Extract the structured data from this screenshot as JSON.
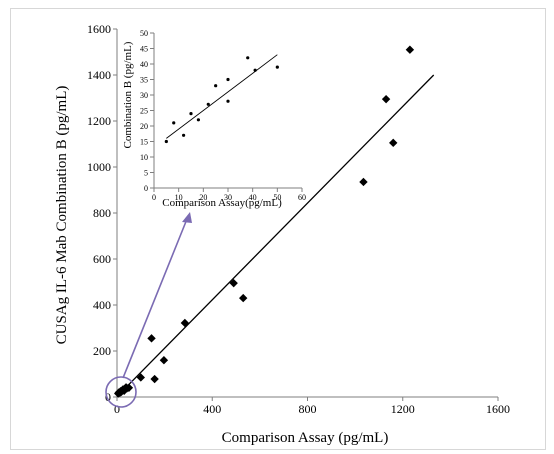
{
  "colors": {
    "axis": "#7f7f7f",
    "marker": "#000000",
    "fit_line": "#000000",
    "circle": "#7b6bb3",
    "arrow": "#7b6bb3"
  },
  "chart_data": [
    {
      "type": "scatter",
      "title": "",
      "xlabel": "Comparison Assay (pg/mL)",
      "ylabel": "CUSAg IL-6 Mab Combination B (pg/mL)",
      "xlim": [
        0,
        1600
      ],
      "ylim": [
        0,
        1600
      ],
      "xticks": [
        0,
        400,
        800,
        1200,
        1600
      ],
      "yticks": [
        0,
        200,
        400,
        600,
        800,
        1000,
        1200,
        1400,
        1600
      ],
      "xtick_labels": [
        "0",
        "400",
        "800",
        "1200",
        "1600"
      ],
      "ytick_labels": [
        "0",
        "200",
        "400",
        "600",
        "800",
        "1000",
        "1200",
        "1400",
        "1600"
      ],
      "marker": "diamond",
      "grid": false,
      "points": [
        {
          "x": 5,
          "y": 15
        },
        {
          "x": 8,
          "y": 20
        },
        {
          "x": 12,
          "y": 18
        },
        {
          "x": 15,
          "y": 25
        },
        {
          "x": 18,
          "y": 22
        },
        {
          "x": 22,
          "y": 28
        },
        {
          "x": 25,
          "y": 33
        },
        {
          "x": 30,
          "y": 27
        },
        {
          "x": 32,
          "y": 35
        },
        {
          "x": 38,
          "y": 42
        },
        {
          "x": 42,
          "y": 38
        },
        {
          "x": 50,
          "y": 40
        },
        {
          "x": 100,
          "y": 85
        },
        {
          "x": 145,
          "y": 255
        },
        {
          "x": 158,
          "y": 78
        },
        {
          "x": 197,
          "y": 160
        },
        {
          "x": 285,
          "y": 322
        },
        {
          "x": 490,
          "y": 495
        },
        {
          "x": 530,
          "y": 430
        },
        {
          "x": 1035,
          "y": 935
        },
        {
          "x": 1130,
          "y": 1295
        },
        {
          "x": 1160,
          "y": 1105
        },
        {
          "x": 1230,
          "y": 1510
        }
      ],
      "trendline": {
        "x": [
          0,
          1330
        ],
        "y": [
          2,
          1400
        ]
      }
    },
    {
      "type": "scatter",
      "title": "",
      "xlabel": "Comparison Assay(pg/mL)",
      "ylabel": "Combination B (pg/mL)",
      "xlim": [
        0,
        60
      ],
      "ylim": [
        0,
        50
      ],
      "xticks": [
        0,
        10,
        20,
        30,
        40,
        50,
        60
      ],
      "yticks": [
        0,
        5,
        10,
        15,
        20,
        25,
        30,
        35,
        40,
        45,
        50
      ],
      "xtick_labels": [
        "0",
        "10",
        "20",
        "30",
        "40",
        "50",
        "60"
      ],
      "ytick_labels": [
        "0",
        "5",
        "10",
        "15",
        "20",
        "25",
        "30",
        "35",
        "40",
        "45",
        "50"
      ],
      "marker": "dot",
      "grid": false,
      "points": [
        {
          "x": 5,
          "y": 15
        },
        {
          "x": 8,
          "y": 21
        },
        {
          "x": 12,
          "y": 17
        },
        {
          "x": 15,
          "y": 24
        },
        {
          "x": 18,
          "y": 22
        },
        {
          "x": 22,
          "y": 27
        },
        {
          "x": 25,
          "y": 33
        },
        {
          "x": 30,
          "y": 28
        },
        {
          "x": 30,
          "y": 35
        },
        {
          "x": 38,
          "y": 42
        },
        {
          "x": 41,
          "y": 38
        },
        {
          "x": 50,
          "y": 39
        }
      ],
      "trendline": {
        "x": [
          5,
          50
        ],
        "y": [
          16,
          43
        ]
      }
    }
  ]
}
